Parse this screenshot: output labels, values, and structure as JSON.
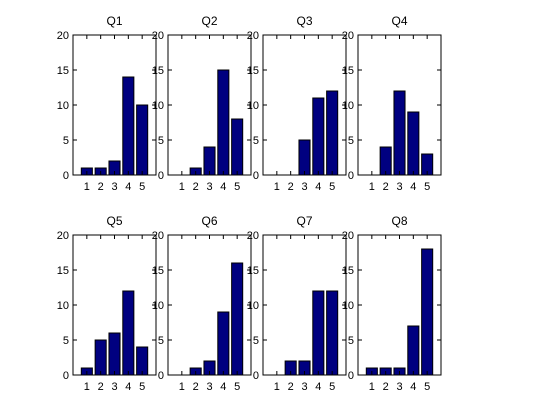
{
  "chart_data": [
    {
      "type": "bar",
      "title": "Q1",
      "categories": [
        "1",
        "2",
        "3",
        "4",
        "5"
      ],
      "values": [
        1,
        1,
        2,
        14,
        10
      ],
      "ylim": [
        0,
        20
      ],
      "yticks": [
        0,
        5,
        10,
        15,
        20
      ],
      "bar_color": "#000080"
    },
    {
      "type": "bar",
      "title": "Q2",
      "categories": [
        "1",
        "2",
        "3",
        "4",
        "5"
      ],
      "values": [
        0,
        1,
        4,
        15,
        8
      ],
      "ylim": [
        0,
        20
      ],
      "yticks": [
        0,
        5,
        10,
        15,
        20
      ],
      "bar_color": "#000080"
    },
    {
      "type": "bar",
      "title": "Q3",
      "categories": [
        "1",
        "2",
        "3",
        "4",
        "5"
      ],
      "values": [
        0,
        0,
        5,
        11,
        12
      ],
      "ylim": [
        0,
        20
      ],
      "yticks": [
        0,
        5,
        10,
        15,
        20
      ],
      "bar_color": "#000080"
    },
    {
      "type": "bar",
      "title": "Q4",
      "categories": [
        "1",
        "2",
        "3",
        "4",
        "5"
      ],
      "values": [
        0,
        4,
        12,
        9,
        3
      ],
      "ylim": [
        0,
        20
      ],
      "yticks": [
        0,
        5,
        10,
        15,
        20
      ],
      "bar_color": "#000080"
    },
    {
      "type": "bar",
      "title": "Q5",
      "categories": [
        "1",
        "2",
        "3",
        "4",
        "5"
      ],
      "values": [
        1,
        5,
        6,
        12,
        4
      ],
      "ylim": [
        0,
        20
      ],
      "yticks": [
        0,
        5,
        10,
        15,
        20
      ],
      "bar_color": "#000080"
    },
    {
      "type": "bar",
      "title": "Q6",
      "categories": [
        "1",
        "2",
        "3",
        "4",
        "5"
      ],
      "values": [
        0,
        1,
        2,
        9,
        16
      ],
      "ylim": [
        0,
        20
      ],
      "yticks": [
        0,
        5,
        10,
        15,
        20
      ],
      "bar_color": "#000080"
    },
    {
      "type": "bar",
      "title": "Q7",
      "categories": [
        "1",
        "2",
        "3",
        "4",
        "5"
      ],
      "values": [
        0,
        2,
        2,
        12,
        12
      ],
      "ylim": [
        0,
        20
      ],
      "yticks": [
        0,
        5,
        10,
        15,
        20
      ],
      "bar_color": "#000080"
    },
    {
      "type": "bar",
      "title": "Q8",
      "categories": [
        "1",
        "2",
        "3",
        "4",
        "5"
      ],
      "values": [
        1,
        1,
        1,
        7,
        18
      ],
      "ylim": [
        0,
        20
      ],
      "yticks": [
        0,
        5,
        10,
        15,
        20
      ],
      "bar_color": "#000080"
    }
  ]
}
